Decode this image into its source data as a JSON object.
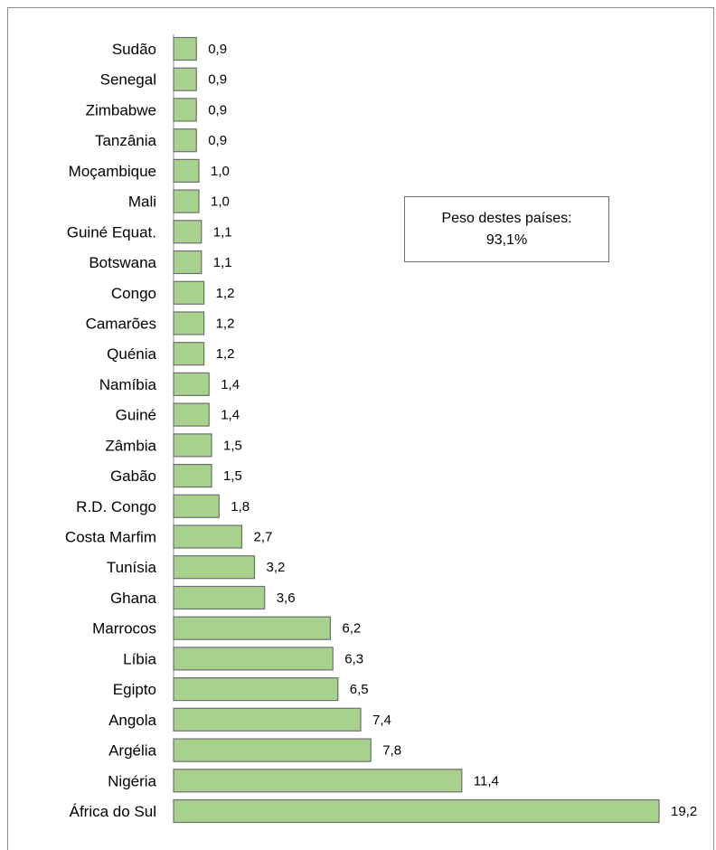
{
  "chart_data": {
    "type": "bar",
    "orientation": "horizontal",
    "categories": [
      "Sudão",
      "Senegal",
      "Zimbabwe",
      "Tanzânia",
      "Moçambique",
      "Mali",
      "Guiné Equat.",
      "Botswana",
      "Congo",
      "Camarões",
      "Quénia",
      "Namíbia",
      "Guiné",
      "Zâmbia",
      "Gabão",
      "R.D. Congo",
      "Costa Marfim",
      "Tunísia",
      "Ghana",
      "Marrocos",
      "Líbia",
      "Egipto",
      "Angola",
      "Argélia",
      "Nigéria",
      "África do Sul"
    ],
    "values": [
      0.9,
      0.9,
      0.9,
      0.9,
      1.0,
      1.0,
      1.1,
      1.1,
      1.2,
      1.2,
      1.2,
      1.4,
      1.4,
      1.5,
      1.5,
      1.8,
      2.7,
      3.2,
      3.6,
      6.2,
      6.3,
      6.5,
      7.4,
      7.8,
      11.4,
      19.2
    ],
    "value_labels": [
      "0,9",
      "0,9",
      "0,9",
      "0,9",
      "1,0",
      "1,0",
      "1,1",
      "1,1",
      "1,2",
      "1,2",
      "1,2",
      "1,4",
      "1,4",
      "1,5",
      "1,5",
      "1,8",
      "2,7",
      "3,2",
      "3,6",
      "6,2",
      "6,3",
      "6,5",
      "7,4",
      "7,8",
      "11,4",
      "19,2"
    ],
    "xlim": [
      0,
      19.2
    ],
    "grid": false,
    "bar_color": "#a9d18e",
    "bar_border_color": "#6f6f6f",
    "annotation": {
      "line1": "Peso destes países:",
      "line2": "93,1%"
    }
  }
}
